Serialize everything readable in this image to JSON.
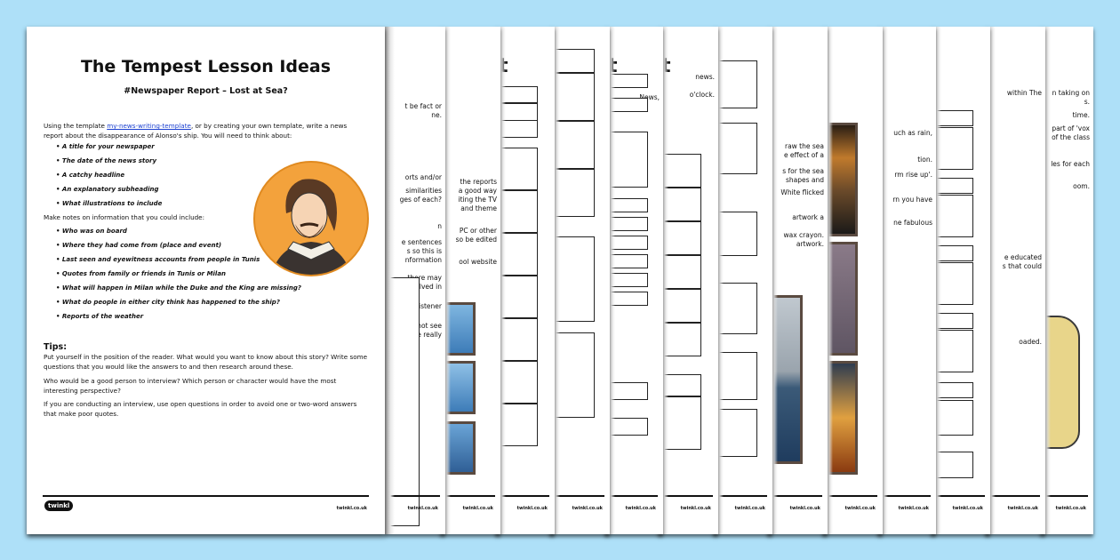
{
  "front": {
    "title": "The Tempest Lesson Ideas",
    "subtitle": "#Newspaper Report – Lost at Sea?",
    "intro_before_link": "Using the template ",
    "intro_link": "my-news-writing-template",
    "intro_after_link": ", or by creating your own template, write a news report about the disappearance of Alonso's ship. You will need to think about:",
    "think_about": [
      "A title for your newspaper",
      "The date of the news story",
      "A catchy headline",
      "An explanatory subheading",
      "What illustrations to include"
    ],
    "notes_intro": "Make notes on information that you could include:",
    "notes": [
      "Who was on board",
      "Where they had come from (place and event)",
      "Last seen and eyewitness accounts from people in Tunis",
      "Quotes from family or friends in Tunis or Milan",
      "What will happen in Milan while the Duke and the King are missing?",
      "What do people in either city think has happened to the ship?",
      "Reports of the weather"
    ],
    "tips_heading": "Tips:",
    "tips": [
      "Put yourself in the position of the reader. What would you want to know about this story? Write some questions that you would like the answers to and then research around these.",
      "Who would be a good person to interview? Which person or character would have the most interesting perspective?",
      "If you are conducting an interview, use open questions in order to avoid one or two-word answers that make poor quotes."
    ],
    "logo": "twinkl",
    "footer_url": "twinkl.co.uk",
    "portrait_bg": "#f3a23c"
  },
  "strips": [
    {
      "text": [
        "t be fact or",
        "ne.",
        "orts and/or",
        "similarities",
        "ges of each?",
        "n",
        "e sentences",
        "s so this is",
        "nformation",
        "there may",
        "involved in",
        "he listener",
        "cannot see",
        "be really"
      ]
    },
    {
      "text": [
        "the reports",
        "a good way",
        "iting the TV",
        "and theme",
        "PC or other",
        "so be edited",
        "ool website"
      ]
    },
    {
      "heading": "t"
    },
    {},
    {
      "heading": "t",
      "text": [
        "News,"
      ]
    },
    {
      "heading": "t",
      "text": [
        "news.",
        "o'clock."
      ]
    },
    {},
    {
      "text": [
        "raw the sea",
        "e effect of a",
        "s for the sea",
        "shapes and",
        "White flicked",
        "artwork a",
        "wax crayon.",
        "artwork."
      ]
    },
    {},
    {
      "text": [
        "uch as rain,",
        "tion.",
        "rm rise up'.",
        "rn you have",
        "ne fabulous"
      ]
    },
    {},
    {
      "text": [
        "within The",
        "e educated",
        "s that could",
        "oaded."
      ]
    },
    {
      "text": [
        "n taking on",
        "s.",
        "time.",
        "part of 'vox",
        "of the class",
        "les for each",
        "oom."
      ]
    }
  ],
  "colors": {
    "background": "#aee0f8",
    "link": "#1a3fd0"
  }
}
